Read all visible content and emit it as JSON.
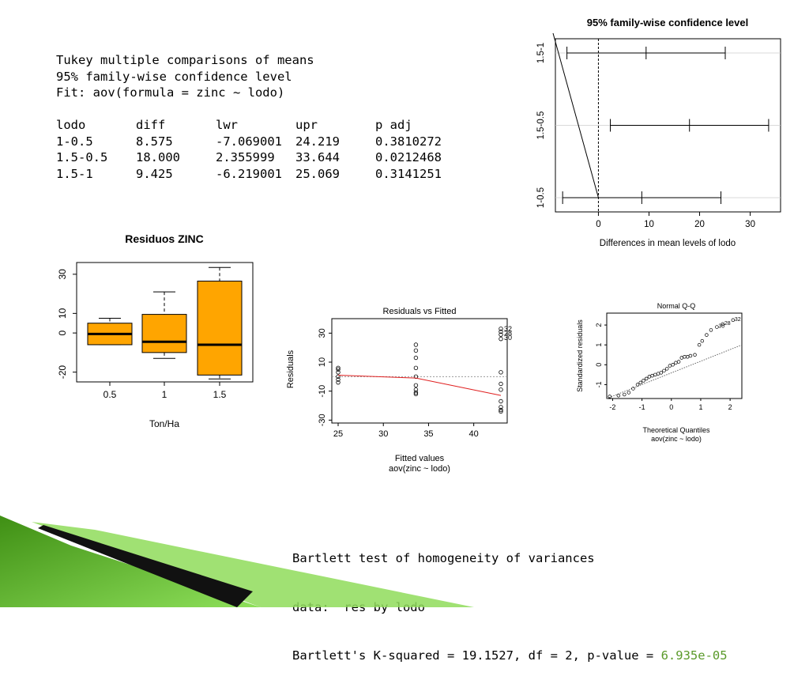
{
  "tukey": {
    "title": "Tukey multiple comparisons of means",
    "level": "95% family-wise confidence level",
    "fit": "Fit: aov(formula = zinc ~ lodo)",
    "headers": [
      "lodo",
      "diff",
      "lwr",
      "upr",
      "p adj"
    ],
    "rows": [
      [
        "1-0.5",
        "8.575",
        "-7.069001",
        "24.219",
        "0.3810272"
      ],
      [
        "1.5-0.5",
        "18.000",
        "2.355999",
        "33.644",
        "0.0212468"
      ],
      [
        "1.5-1",
        "9.425",
        "-6.219001",
        "25.069",
        "0.3141251"
      ]
    ]
  },
  "bartlett": {
    "title": "Bartlett test of homogeneity of variances",
    "data_line": "data:  res by lodo",
    "stat_prefix": "Bartlett's K-squared = 19.1527, df = 2, p-value = ",
    "p_value": "6.935e-05",
    "p_value_color": "#5a9a2a"
  },
  "chart_data": [
    {
      "type": "errorbar",
      "title": "95% family-wise confidence level",
      "xlabel": "Differences in mean levels of lodo",
      "xticks": [
        "0",
        "10",
        "20",
        "30"
      ],
      "xlim": [
        -8.5,
        36
      ],
      "categories": [
        "1-0.5",
        "1.5-0.5",
        "1.5-1"
      ],
      "diff": [
        8.575,
        18.0,
        9.425
      ],
      "lwr": [
        -7.069001,
        2.355999,
        -6.219001
      ],
      "upr": [
        24.219,
        33.644,
        25.069
      ]
    },
    {
      "type": "boxplot",
      "title": "Residuos ZINC",
      "xlabel": "Ton/Ha",
      "categories": [
        "0.5",
        "1",
        "1.5"
      ],
      "yticks": [
        "-20",
        "0",
        "10",
        "30"
      ],
      "ylim": [
        -25,
        36
      ],
      "box_color": "#ffa500",
      "boxes": [
        {
          "whisker_low": -6,
          "q1": -6,
          "median": -0.5,
          "q3": 5,
          "whisker_high": 7.5
        },
        {
          "whisker_low": -13,
          "q1": -10,
          "median": -4.5,
          "q3": 9.5,
          "whisker_high": 21
        },
        {
          "whisker_low": -23.5,
          "q1": -21.5,
          "median": -6,
          "q3": 26.5,
          "whisker_high": 33.5
        }
      ]
    },
    {
      "type": "scatter",
      "title": "Residuals vs Fitted",
      "xlabel": "Fitted values",
      "subtitle": "aov(zinc ~ lodo)",
      "ylabel": "Residuals",
      "xticks": [
        "25",
        "30",
        "35",
        "40"
      ],
      "yticks": [
        "-30",
        "-10",
        "10",
        "30"
      ],
      "xlim": [
        24.3,
        43.7
      ],
      "ylim": [
        -32,
        40
      ],
      "points": [
        [
          25,
          6
        ],
        [
          25,
          3
        ],
        [
          25,
          0
        ],
        [
          25,
          -2
        ],
        [
          25,
          -4
        ],
        [
          25,
          5
        ],
        [
          33.6,
          22
        ],
        [
          33.6,
          18
        ],
        [
          33.6,
          13
        ],
        [
          33.6,
          6
        ],
        [
          33.6,
          0
        ],
        [
          33.6,
          -6
        ],
        [
          33.6,
          -9
        ],
        [
          33.6,
          -11
        ],
        [
          33.6,
          -12
        ],
        [
          43,
          33
        ],
        [
          43,
          31
        ],
        [
          43,
          29
        ],
        [
          43,
          26
        ],
        [
          43,
          3
        ],
        [
          43,
          -5
        ],
        [
          43,
          -9
        ],
        [
          43,
          -17
        ],
        [
          43,
          -21
        ],
        [
          43,
          -23
        ],
        [
          43,
          -24
        ]
      ],
      "labels": [
        {
          "text": "32",
          "x": 43,
          "y": 33
        },
        {
          "text": "28",
          "x": 43,
          "y": 30
        },
        {
          "text": "30",
          "x": 43,
          "y": 27
        }
      ],
      "smooth": [
        [
          25,
          1
        ],
        [
          33.6,
          -1
        ],
        [
          43,
          -13
        ]
      ]
    },
    {
      "type": "scatter",
      "title": "Normal Q-Q",
      "xlabel": "Theoretical Quantiles",
      "subtitle": "aov(zinc ~ lodo)",
      "ylabel": "Standardized residuals",
      "xticks": [
        "-2",
        "-1",
        "0",
        "1",
        "2"
      ],
      "yticks": [
        "-1",
        "0",
        "1",
        "2"
      ],
      "xlim": [
        -2.2,
        2.4
      ],
      "ylim": [
        -1.7,
        2.6
      ],
      "points": [
        [
          -2.1,
          -1.6
        ],
        [
          -1.8,
          -1.55
        ],
        [
          -1.6,
          -1.5
        ],
        [
          -1.45,
          -1.4
        ],
        [
          -1.3,
          -1.2
        ],
        [
          -1.15,
          -1.0
        ],
        [
          -1.05,
          -0.9
        ],
        [
          -0.95,
          -0.8
        ],
        [
          -0.85,
          -0.7
        ],
        [
          -0.75,
          -0.6
        ],
        [
          -0.65,
          -0.55
        ],
        [
          -0.55,
          -0.5
        ],
        [
          -0.45,
          -0.45
        ],
        [
          -0.35,
          -0.4
        ],
        [
          -0.25,
          -0.3
        ],
        [
          -0.15,
          -0.2
        ],
        [
          -0.05,
          -0.05
        ],
        [
          0.05,
          0.0
        ],
        [
          0.15,
          0.1
        ],
        [
          0.25,
          0.15
        ],
        [
          0.35,
          0.35
        ],
        [
          0.45,
          0.4
        ],
        [
          0.55,
          0.4
        ],
        [
          0.65,
          0.45
        ],
        [
          0.8,
          0.5
        ],
        [
          0.95,
          1.0
        ],
        [
          1.05,
          1.2
        ],
        [
          1.2,
          1.5
        ],
        [
          1.35,
          1.75
        ],
        [
          1.55,
          1.9
        ],
        [
          1.75,
          2.05
        ],
        [
          2.1,
          2.25
        ]
      ],
      "labels": [
        {
          "text": "32",
          "x": 2.1,
          "y": 2.25
        },
        {
          "text": "28",
          "x": 1.75,
          "y": 2.05
        },
        {
          "text": "30",
          "x": 1.55,
          "y": 1.9
        }
      ],
      "refline": [
        [
          -2.2,
          -1.7
        ],
        [
          2.4,
          1.0
        ]
      ]
    }
  ]
}
